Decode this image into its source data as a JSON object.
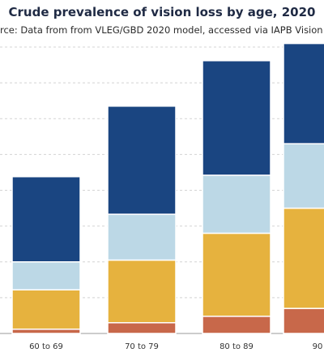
{
  "chart_data": {
    "type": "bar",
    "stacked": true,
    "title": "Crude prevalence of vision loss by age, 2020",
    "subtitle": "rce: Data from from VLEG/GBD 2020 model, accessed via IAPB Vision A",
    "xlabel": "",
    "ylabel": "",
    "categories": [
      "60 to 69",
      "70 to 79",
      "80 to 89",
      "90"
    ],
    "ylim": [
      0,
      8.0
    ],
    "yticks": [
      0,
      1,
      2,
      3,
      4,
      5,
      6,
      7,
      8
    ],
    "grid": true,
    "series": [
      {
        "color": "#c8684a",
        "values": [
          0.12,
          0.3,
          0.48,
          0.7
        ]
      },
      {
        "color": "#e6b23e",
        "values": [
          1.1,
          1.75,
          2.32,
          2.8
        ]
      },
      {
        "color": "#bcd8e6",
        "values": [
          0.78,
          1.28,
          1.62,
          1.8
        ]
      },
      {
        "color": "#1a4581",
        "values": [
          2.38,
          3.02,
          3.2,
          2.8
        ]
      }
    ]
  }
}
